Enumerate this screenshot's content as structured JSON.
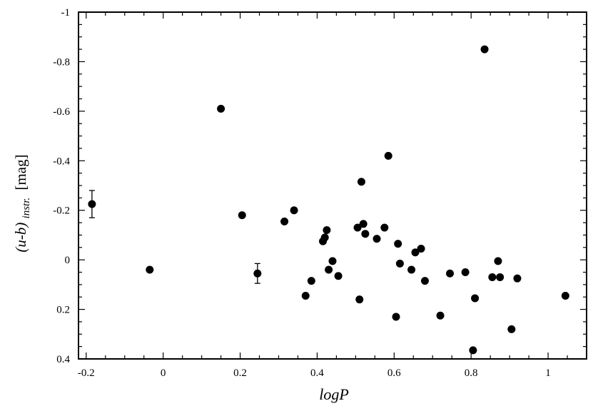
{
  "chart_data": {
    "type": "scatter",
    "xlabel": "logP",
    "ylabel": {
      "main": "(u-b)",
      "subscript": "instr.",
      "unit": "[mag]"
    },
    "xlim": [
      -0.22,
      1.1
    ],
    "ylim": [
      0.4,
      -1.0
    ],
    "y_inverted": true,
    "x_ticks": [
      -0.2,
      0,
      0.2,
      0.4,
      0.6,
      0.8,
      1
    ],
    "x_tick_labels": [
      "-0.2",
      "0",
      "0.2",
      "0.4",
      "0.6",
      "0.8",
      "1"
    ],
    "y_ticks": [
      -1,
      -0.8,
      -0.6,
      -0.4,
      -0.2,
      0,
      0.2,
      0.4
    ],
    "y_tick_labels": [
      "-1",
      "-0.8",
      "-0.6",
      "-0.4",
      "-0.2",
      "0",
      "0.2",
      "0.4"
    ],
    "grid": false,
    "legend": "none",
    "points": [
      {
        "x": -0.185,
        "y": -0.225,
        "err": 0.055
      },
      {
        "x": -0.035,
        "y": 0.04
      },
      {
        "x": 0.15,
        "y": -0.61
      },
      {
        "x": 0.205,
        "y": -0.18
      },
      {
        "x": 0.245,
        "y": 0.055,
        "err": 0.04
      },
      {
        "x": 0.315,
        "y": -0.155
      },
      {
        "x": 0.34,
        "y": -0.2
      },
      {
        "x": 0.37,
        "y": 0.145
      },
      {
        "x": 0.385,
        "y": 0.085
      },
      {
        "x": 0.415,
        "y": -0.075
      },
      {
        "x": 0.42,
        "y": -0.09
      },
      {
        "x": 0.425,
        "y": -0.12
      },
      {
        "x": 0.43,
        "y": 0.04
      },
      {
        "x": 0.44,
        "y": 0.005
      },
      {
        "x": 0.455,
        "y": 0.065
      },
      {
        "x": 0.505,
        "y": -0.13
      },
      {
        "x": 0.51,
        "y": 0.16
      },
      {
        "x": 0.515,
        "y": -0.315
      },
      {
        "x": 0.52,
        "y": -0.145
      },
      {
        "x": 0.525,
        "y": -0.105
      },
      {
        "x": 0.555,
        "y": -0.085
      },
      {
        "x": 0.575,
        "y": -0.13
      },
      {
        "x": 0.585,
        "y": -0.42
      },
      {
        "x": 0.605,
        "y": 0.23
      },
      {
        "x": 0.61,
        "y": -0.065
      },
      {
        "x": 0.615,
        "y": 0.015
      },
      {
        "x": 0.645,
        "y": 0.04
      },
      {
        "x": 0.655,
        "y": -0.03
      },
      {
        "x": 0.67,
        "y": -0.045
      },
      {
        "x": 0.68,
        "y": 0.085
      },
      {
        "x": 0.72,
        "y": 0.225
      },
      {
        "x": 0.745,
        "y": 0.055
      },
      {
        "x": 0.785,
        "y": 0.05
      },
      {
        "x": 0.805,
        "y": 0.365
      },
      {
        "x": 0.81,
        "y": 0.155
      },
      {
        "x": 0.835,
        "y": -0.85
      },
      {
        "x": 0.855,
        "y": 0.07
      },
      {
        "x": 0.87,
        "y": 0.005
      },
      {
        "x": 0.875,
        "y": 0.07
      },
      {
        "x": 0.905,
        "y": 0.28
      },
      {
        "x": 0.92,
        "y": 0.075
      },
      {
        "x": 1.045,
        "y": 0.145
      }
    ]
  }
}
